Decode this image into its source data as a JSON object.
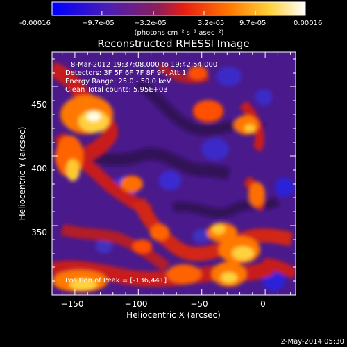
{
  "colorbar": {
    "tick_labels": [
      "-0.00016",
      "−9.7e-05",
      "−3.2e-05",
      "3.2e-05",
      "9.7e-05",
      "0.00016"
    ],
    "tick_values": [
      -0.00016,
      -9.7e-05,
      -3.2e-05,
      3.2e-05,
      9.7e-05,
      0.00016
    ],
    "range": [
      -0.00016,
      0.00016
    ],
    "unit_label": "(photons cm⁻² s⁻¹ asec⁻²)",
    "colors": [
      "#0000ff",
      "#5a1ea0",
      "#a01e46",
      "#ff2800",
      "#ff8c00",
      "#ffe650",
      "#ffffff"
    ]
  },
  "plot": {
    "title": "Reconstructed RHESSI Image",
    "xlabel": "Heliocentric X (arcsec)",
    "ylabel": "Heliocentric Y (arcsec)",
    "xlim": [
      -168,
      24
    ],
    "ylim": [
      300,
      475
    ],
    "x_ticks": [
      -150,
      -100,
      -50,
      0
    ],
    "x_tick_labels": [
      "−150",
      "−100",
      "−50",
      "0"
    ],
    "y_ticks": [
      350,
      400,
      450
    ],
    "y_tick_labels": [
      "350",
      "400",
      "450"
    ],
    "info_lines": [
      "8-Mar-2012 19:37:08.000 to 19:42:54.000",
      "Detectors: 3F 5F 6F 7F 8F 9F, Att 1",
      "Energy Range: 25.0 - 50.0 keV",
      "Clean    Total counts: 5.95E+03"
    ],
    "peak_text": "Position of Peak = [-136,441]",
    "peak": [
      -136,
      441
    ]
  },
  "footer": {
    "date": "2-May-2014 05:30"
  }
}
